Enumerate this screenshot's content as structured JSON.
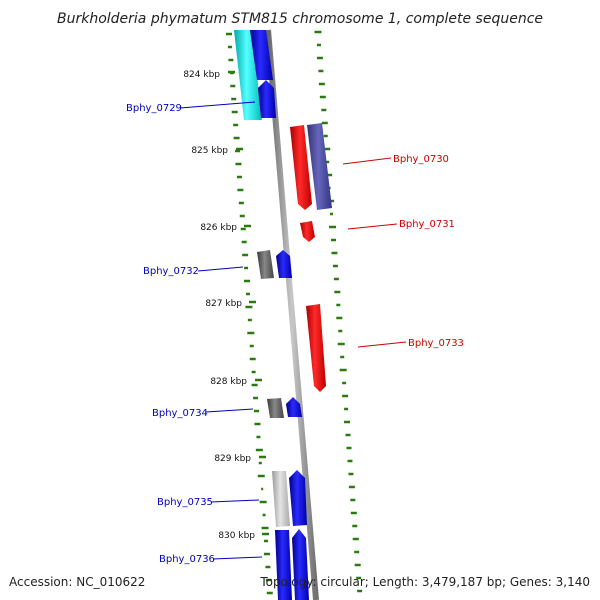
{
  "title": "Burkholderia phymatum STM815 chromosome 1, complete sequence",
  "footer": {
    "accession": "Accession: NC_010622",
    "summary": "Topology: circular; Length: 3,479,187 bp; Genes: 3,140"
  },
  "colors": {
    "forward_label": "#0000bb",
    "reverse_label": "#cc0000",
    "backbone": "#888888",
    "gc_ticks": "#2a7a10"
  },
  "scale_labels": [
    "824 kbp",
    "825 kbp",
    "826 kbp",
    "827 kbp",
    "828 kbp",
    "829 kbp",
    "830 kbp"
  ],
  "gene_labels": [
    {
      "name": "Bphy_0729",
      "strand": "forward"
    },
    {
      "name": "Bphy_0730",
      "strand": "reverse"
    },
    {
      "name": "Bphy_0731",
      "strand": "reverse"
    },
    {
      "name": "Bphy_0732",
      "strand": "forward"
    },
    {
      "name": "Bphy_0733",
      "strand": "reverse"
    },
    {
      "name": "Bphy_0734",
      "strand": "forward"
    },
    {
      "name": "Bphy_0735",
      "strand": "forward"
    },
    {
      "name": "Bphy_0736",
      "strand": "forward"
    }
  ]
}
